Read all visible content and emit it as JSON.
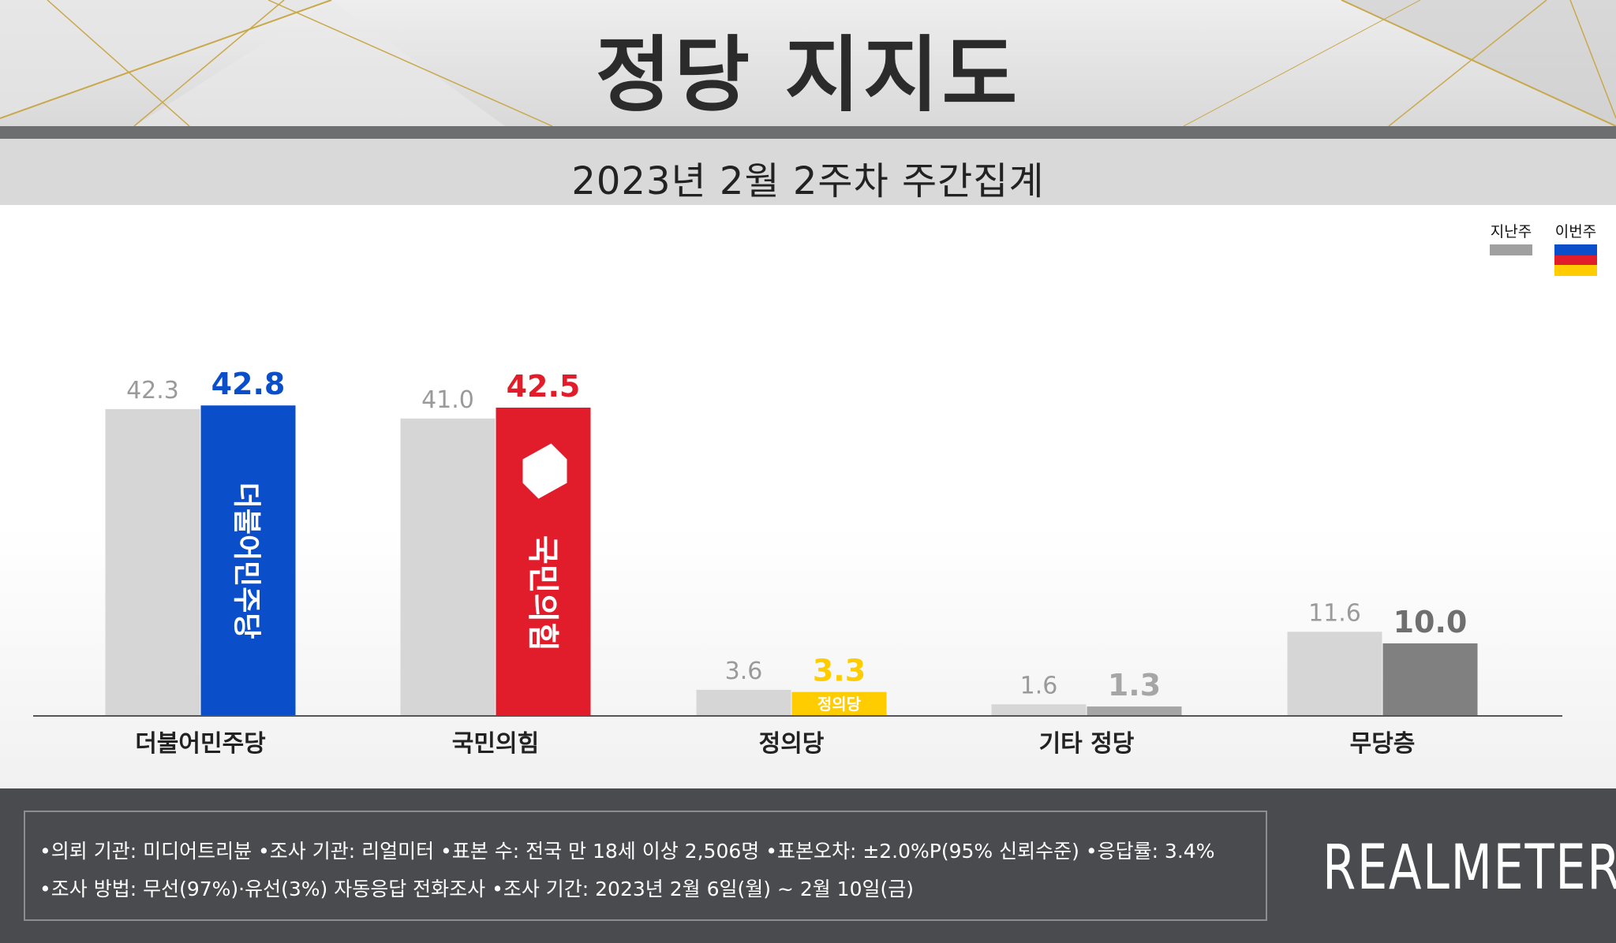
{
  "header": {
    "title": "정당 지지도",
    "subtitle": "2023년 2월 2주차 주간집계"
  },
  "legend": {
    "previous_label": "지난주",
    "current_label": "이번주"
  },
  "colors": {
    "previous_bar": "#d6d6d6",
    "previous_swatch": "#a0a0a0",
    "democratic": "#0a4fc9",
    "ppp": "#e21d2b",
    "justice": "#ffcc00",
    "other": "#a6a6a6",
    "none": "#808080",
    "none_value_text": "#6f6f6f",
    "axis": "#555555"
  },
  "chart_data": {
    "type": "bar",
    "title": "정당 지지도",
    "subtitle": "2023년 2월 2주차 주간집계",
    "categories": [
      "더불어민주당",
      "국민의힘",
      "정의당",
      "기타 정당",
      "무당층"
    ],
    "series": [
      {
        "name": "지난주",
        "values": [
          42.3,
          41.0,
          3.6,
          1.6,
          11.6
        ]
      },
      {
        "name": "이번주",
        "values": [
          42.8,
          42.5,
          3.3,
          1.3,
          10.0
        ]
      }
    ],
    "value_labels_previous": [
      "42.3",
      "41.0",
      "3.6",
      "1.6",
      "11.6"
    ],
    "value_labels_current": [
      "42.8",
      "42.5",
      "3.3",
      "1.3",
      "10.0"
    ],
    "bar_logos": [
      "더불어민주당",
      "국민의힘",
      "정의당",
      "",
      ""
    ],
    "ylim": [
      0,
      45
    ],
    "grid": false,
    "legend_position": "top-right"
  },
  "footer": {
    "line1": "•의뢰 기관: 미디어트리뷴  •조사 기관: 리얼미터 •표본 수: 전국 만 18세 이상 2,506명 •표본오차: ±2.0%P(95% 신뢰수준) •응답률: 3.4%",
    "line2": "•조사 방법: 무선(97%)·유선(3%) 자동응답 전화조사 •조사 기간: 2023년 2월 6일(월) ~ 2월 10일(금)",
    "brand": "REALMETER"
  }
}
